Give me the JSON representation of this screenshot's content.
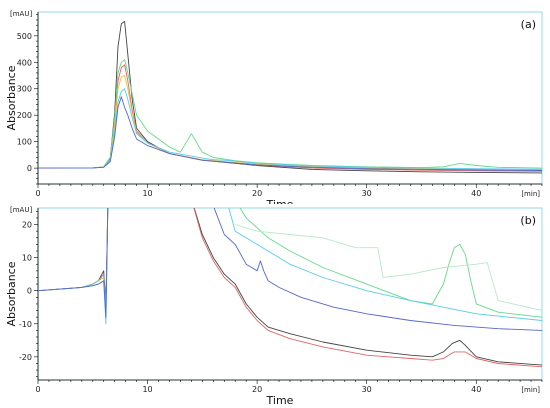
{
  "chart_data": [
    {
      "panel": "(a)",
      "type": "line",
      "unit_y": "[mAU]",
      "unit_x": "[min]",
      "xlabel": "Time",
      "ylabel": "Absorbance",
      "xlim": [
        0,
        46
      ],
      "ylim": [
        -60,
        590
      ],
      "xticks": [
        0,
        10,
        20,
        30,
        40
      ],
      "yticks": [
        0,
        100,
        200,
        300,
        400,
        500
      ],
      "grid": false,
      "series": [
        {
          "color": "#444444",
          "x": [
            0,
            5,
            6,
            6.6,
            7,
            7.3,
            7.6,
            7.9,
            8.2,
            8.6,
            9,
            10,
            12,
            15,
            20,
            25,
            30,
            35,
            40,
            46
          ],
          "y": [
            0,
            1,
            5,
            40,
            210,
            460,
            545,
            555,
            430,
            260,
            150,
            100,
            55,
            30,
            10,
            -5,
            -10,
            -14,
            -16,
            -18
          ]
        },
        {
          "color": "#e06666",
          "x": [
            0,
            5,
            6,
            6.6,
            7,
            7.3,
            7.6,
            7.9,
            8.2,
            8.6,
            9,
            10,
            12,
            15,
            20,
            25,
            30,
            35,
            40,
            46
          ],
          "y": [
            0,
            1,
            4,
            35,
            180,
            330,
            380,
            390,
            330,
            220,
            140,
            95,
            55,
            30,
            12,
            0,
            -5,
            -8,
            -10,
            -12
          ]
        },
        {
          "color": "#66d98a",
          "x": [
            0,
            5,
            6,
            6.6,
            7,
            7.3,
            7.6,
            7.9,
            8.2,
            8.6,
            9,
            10,
            12,
            13,
            13.5,
            14,
            14.5,
            15,
            16,
            18,
            20,
            25,
            30,
            35,
            37,
            38.5,
            40,
            42,
            46
          ],
          "y": [
            0,
            1,
            5,
            40,
            190,
            360,
            400,
            410,
            360,
            280,
            200,
            140,
            80,
            60,
            95,
            130,
            95,
            60,
            40,
            28,
            20,
            10,
            5,
            2,
            5,
            18,
            10,
            3,
            0
          ]
        },
        {
          "color": "#f2c040",
          "x": [
            0,
            5,
            6,
            6.6,
            7,
            7.3,
            7.6,
            7.9,
            8.2,
            8.6,
            9,
            10,
            12,
            15,
            20,
            25,
            30,
            35,
            40,
            46
          ],
          "y": [
            0,
            1,
            4,
            30,
            160,
            300,
            345,
            350,
            300,
            210,
            135,
            95,
            55,
            32,
            15,
            5,
            0,
            -3,
            -5,
            -7
          ]
        },
        {
          "color": "#55ccea",
          "x": [
            0,
            5,
            6,
            6.6,
            7,
            7.3,
            7.6,
            7.9,
            8.2,
            8.6,
            9,
            10,
            12,
            15,
            16,
            17,
            20,
            25,
            30,
            35,
            40,
            46
          ],
          "y": [
            0,
            1,
            4,
            28,
            140,
            250,
            290,
            300,
            260,
            190,
            130,
            95,
            60,
            38,
            32,
            30,
            18,
            8,
            3,
            0,
            -2,
            -4
          ]
        },
        {
          "color": "#5566cc",
          "x": [
            0,
            5,
            6,
            6.6,
            7,
            7.3,
            7.6,
            7.9,
            8.2,
            8.6,
            9,
            10,
            12,
            15,
            20,
            25,
            30,
            35,
            40,
            46
          ],
          "y": [
            0,
            1,
            3,
            25,
            120,
            230,
            270,
            230,
            200,
            150,
            110,
            85,
            55,
            30,
            12,
            3,
            -2,
            -5,
            -7,
            -9
          ]
        }
      ]
    },
    {
      "panel": "(b)",
      "type": "line",
      "unit_y": "[mAU]",
      "unit_x": "[min]",
      "xlabel": "Time",
      "ylabel": "Absorbance",
      "xlim": [
        0,
        46
      ],
      "ylim": [
        -27,
        25
      ],
      "xticks": [
        0,
        10,
        20,
        30,
        40
      ],
      "yticks": [
        -20,
        -10,
        0,
        10,
        20
      ],
      "grid": false,
      "series": [
        {
          "color": "#444444",
          "x": [
            0,
            4,
            5,
            5.5,
            6,
            6.2,
            6.4,
            6.6,
            13.8,
            15,
            16,
            17,
            18,
            19,
            20,
            21,
            23,
            26,
            30,
            34,
            36,
            37,
            37.8,
            38.5,
            39,
            40,
            42,
            46
          ],
          "y": [
            0,
            1,
            2,
            3,
            6,
            -4,
            30,
            30,
            30,
            17,
            10,
            5,
            2,
            -4,
            -8,
            -11,
            -13,
            -15.5,
            -18,
            -19.5,
            -20,
            -18.5,
            -16,
            -15,
            -16.5,
            -20,
            -21.5,
            -22.5
          ]
        },
        {
          "color": "#e06666",
          "x": [
            0,
            4,
            5,
            5.5,
            6,
            6.2,
            6.4,
            6.6,
            13.8,
            15,
            16,
            17,
            18,
            19,
            20,
            21,
            23,
            26,
            30,
            34,
            36,
            37,
            38,
            39,
            40,
            42,
            46
          ],
          "y": [
            0,
            1,
            2,
            3,
            5,
            -5,
            30,
            30,
            30,
            16,
            9,
            4,
            1,
            -5,
            -9,
            -12,
            -14.5,
            -17,
            -19.5,
            -20.5,
            -21,
            -20.5,
            -18.5,
            -18.5,
            -20.5,
            -22,
            -23
          ]
        },
        {
          "color": "#66d98a",
          "x": [
            0,
            4,
            5,
            6,
            6.2,
            6.4,
            6.6,
            17.5,
            19,
            21,
            23,
            26,
            30,
            34,
            36,
            37,
            37.5,
            38,
            38.5,
            39,
            39.5,
            40,
            42,
            46
          ],
          "y": [
            0,
            1,
            2,
            4,
            -6,
            30,
            30,
            30,
            22,
            16,
            12,
            7,
            2,
            -3,
            -4,
            2,
            8,
            13,
            14,
            11,
            3,
            -4,
            -6.5,
            -8
          ]
        },
        {
          "color": "#b8e8c8",
          "x": [
            18,
            20,
            23,
            26,
            29,
            31,
            31.5,
            34,
            37,
            40,
            41,
            42,
            46
          ],
          "y": [
            20,
            18,
            17,
            16,
            13,
            13,
            4,
            5,
            7,
            8,
            8.5,
            -3,
            -6
          ]
        },
        {
          "color": "#55ccea",
          "x": [
            0,
            4,
            5,
            5.5,
            6,
            6.2,
            6.4,
            6.6,
            17,
            18,
            20,
            23,
            26,
            30,
            34,
            37,
            40,
            43,
            46
          ],
          "y": [
            0,
            1,
            1.5,
            2,
            3,
            -10,
            30,
            30,
            30,
            18,
            14,
            8,
            4,
            0,
            -3,
            -5,
            -7,
            -8,
            -9
          ]
        },
        {
          "color": "#5566cc",
          "x": [
            0,
            4,
            5,
            5.5,
            6,
            6.2,
            6.4,
            6.6,
            15.5,
            17,
            18,
            19,
            20,
            20.3,
            20.6,
            21,
            22,
            24,
            27,
            30,
            34,
            38,
            42,
            46
          ],
          "y": [
            0,
            1,
            1.5,
            2,
            3,
            -8,
            30,
            30,
            30,
            17,
            14,
            8,
            6,
            9,
            6,
            3,
            1,
            -2,
            -5,
            -7,
            -9,
            -10.5,
            -11.5,
            -12
          ]
        }
      ]
    }
  ]
}
